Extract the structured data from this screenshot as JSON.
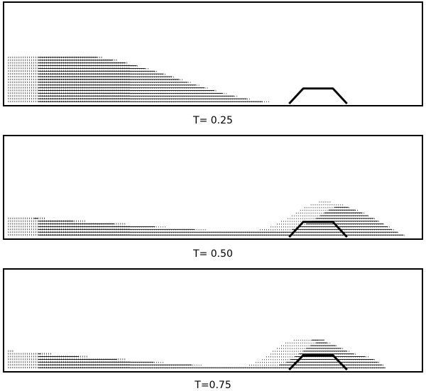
{
  "snapshots": [
    {
      "caption": "T= 0.25"
    },
    {
      "caption": "T= 0.50"
    },
    {
      "caption": "T=0.75"
    }
  ],
  "colors": {
    "frame": "#000000",
    "vectors": "#000000",
    "background": "#ffffff"
  }
}
